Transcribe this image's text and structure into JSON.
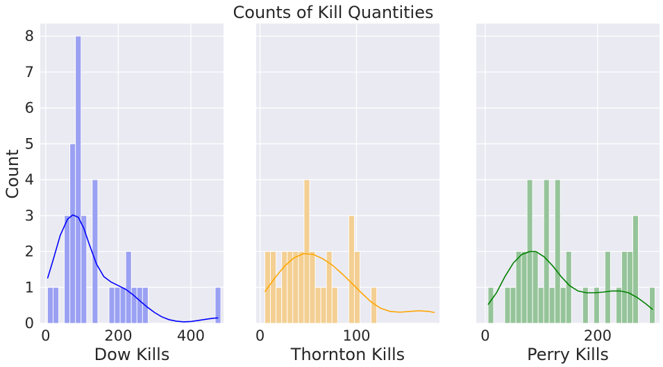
{
  "figure_title": "Counts of Kill Quantities",
  "shared_ylabel": "Count",
  "chart_data": [
    {
      "type": "bar",
      "subtype": "histogram-with-kde",
      "xlabel": "Dow Kills",
      "ylabel": "Count",
      "xlim": [
        -15,
        490
      ],
      "ylim": [
        0,
        8.35
      ],
      "xticks": [
        0,
        200,
        400
      ],
      "yticks": [
        0,
        1,
        2,
        3,
        4,
        5,
        6,
        7,
        8
      ],
      "bin_start": 5,
      "bin_width": 15.4,
      "counts": [
        1,
        1,
        0,
        3,
        5,
        8,
        3,
        0,
        4,
        0,
        0,
        1,
        1,
        1,
        2,
        1,
        1,
        1,
        0,
        0,
        0,
        0,
        0,
        0,
        0,
        0,
        0,
        0,
        0,
        0,
        1
      ],
      "kde": [
        [
          5,
          1.25
        ],
        [
          20,
          1.75
        ],
        [
          40,
          2.45
        ],
        [
          60,
          2.9
        ],
        [
          75,
          3.02
        ],
        [
          90,
          2.95
        ],
        [
          105,
          2.65
        ],
        [
          120,
          2.2
        ],
        [
          140,
          1.65
        ],
        [
          160,
          1.3
        ],
        [
          180,
          1.15
        ],
        [
          200,
          1.05
        ],
        [
          220,
          0.95
        ],
        [
          240,
          0.8
        ],
        [
          260,
          0.62
        ],
        [
          280,
          0.45
        ],
        [
          300,
          0.3
        ],
        [
          320,
          0.18
        ],
        [
          340,
          0.1
        ],
        [
          360,
          0.06
        ],
        [
          380,
          0.04
        ],
        [
          400,
          0.05
        ],
        [
          420,
          0.08
        ],
        [
          440,
          0.11
        ],
        [
          460,
          0.14
        ],
        [
          475,
          0.15
        ]
      ],
      "color": "#0000ff",
      "bar_color": "#9aa0f2",
      "grid": true
    },
    {
      "type": "bar",
      "subtype": "histogram-with-kde",
      "xlabel": "Thornton Kills",
      "xlim": [
        -4,
        186
      ],
      "ylim": [
        0,
        8.35
      ],
      "xticks": [
        0,
        100
      ],
      "yticks": [
        0,
        1,
        2,
        3,
        4,
        5,
        6,
        7,
        8
      ],
      "bin_start": 5,
      "bin_width": 5.8,
      "counts": [
        2,
        2,
        1,
        2,
        2,
        2,
        2,
        4,
        2,
        1,
        1,
        2,
        1,
        0,
        0,
        3,
        2,
        0,
        0,
        1,
        0,
        0,
        0,
        0,
        0,
        0,
        0,
        0,
        0,
        0,
        0,
        0,
        0,
        0,
        0
      ],
      "kde": [
        [
          5,
          0.88
        ],
        [
          15,
          1.25
        ],
        [
          25,
          1.58
        ],
        [
          35,
          1.82
        ],
        [
          45,
          1.94
        ],
        [
          55,
          1.92
        ],
        [
          65,
          1.8
        ],
        [
          75,
          1.62
        ],
        [
          85,
          1.38
        ],
        [
          95,
          1.12
        ],
        [
          105,
          0.85
        ],
        [
          115,
          0.6
        ],
        [
          125,
          0.42
        ],
        [
          135,
          0.33
        ],
        [
          145,
          0.31
        ],
        [
          155,
          0.33
        ],
        [
          165,
          0.35
        ],
        [
          175,
          0.33
        ],
        [
          181,
          0.3
        ]
      ],
      "color": "#ffa500",
      "bar_color": "#f3cf93",
      "grid": true
    },
    {
      "type": "bar",
      "subtype": "histogram-with-kde",
      "xlabel": "Perry Kills",
      "xlim": [
        -16,
        310
      ],
      "ylim": [
        0,
        8.35
      ],
      "xticks": [
        0,
        200
      ],
      "yticks": [
        0,
        1,
        2,
        3,
        4,
        5,
        6,
        7,
        8
      ],
      "bin_start": 5,
      "bin_width": 9.9,
      "counts": [
        1,
        0,
        0,
        1,
        1,
        2,
        2,
        4,
        2,
        1,
        4,
        1,
        4,
        1,
        2,
        0,
        0,
        1,
        0,
        1,
        0,
        2,
        0,
        1,
        2,
        2,
        3,
        0,
        0,
        1
      ],
      "kde": [
        [
          5,
          0.52
        ],
        [
          20,
          0.85
        ],
        [
          35,
          1.3
        ],
        [
          50,
          1.68
        ],
        [
          65,
          1.92
        ],
        [
          80,
          2.0
        ],
        [
          90,
          2.0
        ],
        [
          105,
          1.85
        ],
        [
          120,
          1.6
        ],
        [
          135,
          1.3
        ],
        [
          150,
          1.05
        ],
        [
          165,
          0.9
        ],
        [
          180,
          0.85
        ],
        [
          195,
          0.85
        ],
        [
          210,
          0.87
        ],
        [
          225,
          0.9
        ],
        [
          240,
          0.9
        ],
        [
          255,
          0.85
        ],
        [
          270,
          0.72
        ],
        [
          285,
          0.55
        ],
        [
          298,
          0.38
        ]
      ],
      "color": "#008000",
      "bar_color": "#96c49a",
      "grid": true
    }
  ]
}
